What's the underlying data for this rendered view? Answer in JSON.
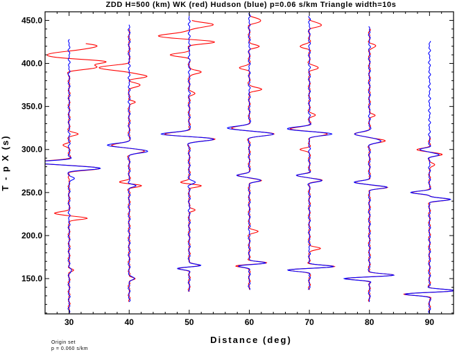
{
  "chart_data": {
    "type": "line",
    "title": "ZDD H=500 (km) WK (red) Hudson (blue) p=0.06 s/km Triangle width=10s",
    "xlabel": "Distance (deg)",
    "ylabel": "T - p X (s)",
    "xlim": [
      26,
      94
    ],
    "ylim": [
      109,
      460
    ],
    "x_ticks": [
      30,
      40,
      50,
      60,
      70,
      80,
      90
    ],
    "y_ticks": [
      150,
      200,
      250,
      300,
      350,
      400,
      450
    ],
    "x_tick_labels": [
      "30",
      "40",
      "50",
      "60",
      "70",
      "80",
      "90"
    ],
    "y_tick_labels": [
      "150.0",
      "200.0",
      "250.0",
      "300.0",
      "350.0",
      "400.0",
      "450.0"
    ],
    "grid": false,
    "series_colors": {
      "wk": "#ff0000",
      "hudson": "#0000ff"
    },
    "traces": [
      {
        "distance": 30,
        "t_start": 110,
        "t_end": 428,
        "wk_start": 423,
        "wk_events": [
          [
            420,
            4.5,
            6
          ],
          [
            410,
            -3.5,
            5
          ],
          [
            402,
            6,
            4
          ],
          [
            396,
            5,
            5
          ],
          [
            318,
            1.5,
            3
          ],
          [
            305,
            -1,
            3
          ],
          [
            285,
            -6,
            4
          ],
          [
            278,
            5,
            4
          ],
          [
            226,
            -2.5,
            3
          ],
          [
            220,
            3,
            3
          ],
          [
            160,
            0.6,
            3
          ]
        ],
        "hudson_events": [
          [
            285,
            -6,
            3.5
          ],
          [
            278,
            5,
            3.5
          ],
          [
            266,
            1,
            3
          ],
          [
            160,
            0.5,
            3
          ]
        ]
      },
      {
        "distance": 40,
        "t_start": 123,
        "t_end": 445,
        "wk_start": 440,
        "wk_events": [
          [
            395,
            -5,
            5
          ],
          [
            385,
            3,
            4
          ],
          [
            375,
            2,
            4
          ],
          [
            355,
            1,
            3
          ],
          [
            305,
            -3,
            4
          ],
          [
            298,
            2.5,
            4
          ],
          [
            262,
            -1.5,
            3
          ],
          [
            258,
            2,
            3
          ],
          [
            150,
            1,
            3
          ]
        ],
        "hudson_events": [
          [
            305,
            -3.5,
            4
          ],
          [
            298,
            3,
            4
          ],
          [
            258,
            1,
            3
          ],
          [
            150,
            1,
            3
          ]
        ]
      },
      {
        "distance": 50,
        "t_start": 135,
        "t_end": 455,
        "wk_start": 450,
        "wk_events": [
          [
            445,
            4,
            5
          ],
          [
            432,
            -5,
            5
          ],
          [
            425,
            4,
            4
          ],
          [
            410,
            -3,
            4
          ],
          [
            390,
            2,
            4
          ],
          [
            365,
            1,
            3
          ],
          [
            318,
            -4,
            4
          ],
          [
            312,
            4,
            4
          ],
          [
            262,
            -1.5,
            3
          ],
          [
            258,
            2,
            3
          ],
          [
            230,
            1,
            3
          ],
          [
            162,
            -2,
            3
          ],
          [
            165,
            2,
            3
          ]
        ],
        "hudson_events": [
          [
            318,
            -4.5,
            4
          ],
          [
            312,
            4,
            4
          ],
          [
            262,
            1,
            3
          ],
          [
            162,
            -2,
            3
          ],
          [
            165,
            2,
            3
          ]
        ]
      },
      {
        "distance": 60,
        "t_start": 137,
        "t_end": 458,
        "wk_start": 455,
        "wk_events": [
          [
            450,
            2,
            5
          ],
          [
            420,
            1.5,
            4
          ],
          [
            395,
            -1.5,
            4
          ],
          [
            370,
            2,
            4
          ],
          [
            325,
            -3,
            4
          ],
          [
            318,
            4,
            4
          ],
          [
            270,
            -2,
            3
          ],
          [
            264,
            2,
            3
          ],
          [
            205,
            1.5,
            3
          ],
          [
            165,
            -2.5,
            3
          ],
          [
            168,
            3,
            3
          ]
        ],
        "hudson_events": [
          [
            325,
            -3.5,
            4
          ],
          [
            318,
            4,
            4
          ],
          [
            270,
            -2,
            3
          ],
          [
            264,
            2,
            3
          ],
          [
            165,
            -2,
            3
          ],
          [
            168,
            3,
            3
          ]
        ]
      },
      {
        "distance": 70,
        "t_start": 137,
        "t_end": 455,
        "wk_start": 452,
        "wk_events": [
          [
            445,
            2,
            5
          ],
          [
            420,
            -1.5,
            4
          ],
          [
            395,
            1.5,
            4
          ],
          [
            340,
            1,
            3
          ],
          [
            324,
            -3,
            4
          ],
          [
            318,
            3,
            4
          ],
          [
            300,
            -1.5,
            3
          ],
          [
            270,
            -2,
            3
          ],
          [
            264,
            2,
            3
          ],
          [
            185,
            2,
            3
          ],
          [
            160,
            -3.5,
            3
          ],
          [
            164,
            4,
            3
          ]
        ],
        "hudson_events": [
          [
            324,
            -3.5,
            4
          ],
          [
            318,
            3.5,
            4
          ],
          [
            270,
            -2,
            3
          ],
          [
            264,
            2,
            3
          ],
          [
            160,
            -3.5,
            3
          ],
          [
            164,
            4,
            3
          ]
        ]
      },
      {
        "distance": 80,
        "t_start": 123,
        "t_end": 443,
        "wk_start": 440,
        "wk_events": [
          [
            420,
            1,
            4
          ],
          [
            340,
            1,
            3
          ],
          [
            318,
            -2.5,
            4
          ],
          [
            310,
            2.5,
            4
          ],
          [
            262,
            -2.5,
            3
          ],
          [
            256,
            3,
            3
          ],
          [
            150,
            -4,
            3
          ],
          [
            154,
            4,
            3
          ]
        ],
        "hudson_events": [
          [
            318,
            -2.5,
            4
          ],
          [
            310,
            2,
            4
          ],
          [
            262,
            -2.5,
            3
          ],
          [
            256,
            3,
            3
          ],
          [
            150,
            -4,
            3
          ],
          [
            154,
            4,
            3
          ]
        ]
      },
      {
        "distance": 90,
        "t_start": 110,
        "t_end": 426,
        "wk_start": 315,
        "wk_events": [
          [
            300,
            -2,
            3
          ],
          [
            294,
            2,
            3
          ],
          [
            282,
            1,
            3
          ],
          [
            250,
            -3,
            3
          ],
          [
            242,
            3.5,
            3
          ],
          [
            132,
            -4,
            3
          ],
          [
            136,
            4,
            3
          ]
        ],
        "hudson_events": [
          [
            300,
            -1.5,
            3
          ],
          [
            294,
            1.5,
            3
          ],
          [
            250,
            -3,
            3
          ],
          [
            242,
            3.5,
            3
          ],
          [
            132,
            -4,
            3
          ],
          [
            136,
            4,
            3
          ]
        ]
      }
    ]
  },
  "annotation": {
    "line1": "Origin set",
    "line2": "p = 0.060 s/km"
  }
}
